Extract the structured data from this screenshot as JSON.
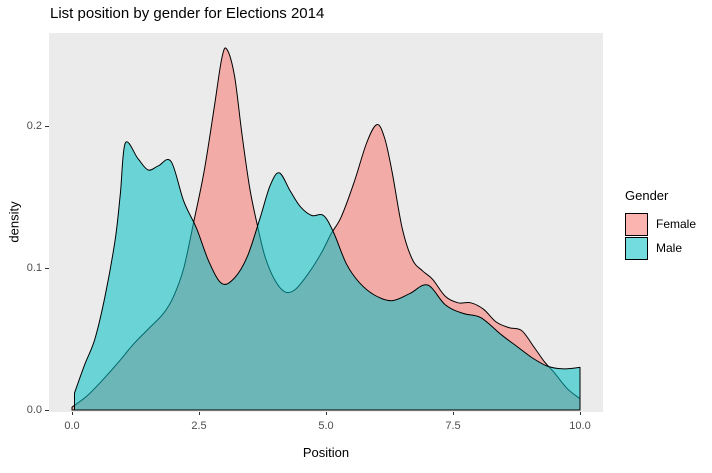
{
  "chart_data": {
    "type": "area",
    "title": "List position by gender for Elections 2014",
    "xlabel": "Position",
    "ylabel": "density",
    "xlim": [
      0,
      10
    ],
    "ylim": [
      0,
      0.265
    ],
    "grid": false,
    "panel_background": "#EBEBEB",
    "fill_opacity": 0.55,
    "outline_color": "#000000",
    "x_ticks": {
      "values": [
        0,
        2.5,
        5,
        7.5,
        10
      ],
      "labels": [
        "0.0",
        "2.5",
        "5.0",
        "7.5",
        "10.0"
      ]
    },
    "y_ticks": {
      "values": [
        0,
        0.1,
        0.2
      ],
      "labels": [
        "0.0",
        "0.1",
        "0.2"
      ]
    },
    "legend": {
      "title": "Gender",
      "position": "right",
      "entries": [
        {
          "label": "Female",
          "color": "#F8766D"
        },
        {
          "label": "Male",
          "color": "#00BFC4"
        }
      ]
    },
    "series": [
      {
        "name": "Female",
        "color": "#F8766D",
        "points": [
          [
            0.0,
            0.002
          ],
          [
            0.3,
            0.01
          ],
          [
            0.6,
            0.021
          ],
          [
            0.9,
            0.033
          ],
          [
            1.2,
            0.046
          ],
          [
            1.5,
            0.057
          ],
          [
            1.8,
            0.068
          ],
          [
            2.0,
            0.08
          ],
          [
            2.2,
            0.1
          ],
          [
            2.4,
            0.133
          ],
          [
            2.6,
            0.168
          ],
          [
            2.8,
            0.213
          ],
          [
            2.95,
            0.248
          ],
          [
            3.05,
            0.254
          ],
          [
            3.2,
            0.235
          ],
          [
            3.35,
            0.193
          ],
          [
            3.5,
            0.156
          ],
          [
            3.65,
            0.13
          ],
          [
            3.8,
            0.108
          ],
          [
            4.0,
            0.091
          ],
          [
            4.2,
            0.083
          ],
          [
            4.4,
            0.085
          ],
          [
            4.65,
            0.096
          ],
          [
            4.9,
            0.11
          ],
          [
            5.1,
            0.124
          ],
          [
            5.3,
            0.136
          ],
          [
            5.55,
            0.16
          ],
          [
            5.8,
            0.188
          ],
          [
            6.0,
            0.201
          ],
          [
            6.15,
            0.192
          ],
          [
            6.3,
            0.168
          ],
          [
            6.5,
            0.128
          ],
          [
            6.7,
            0.106
          ],
          [
            6.9,
            0.098
          ],
          [
            7.1,
            0.092
          ],
          [
            7.35,
            0.08
          ],
          [
            7.6,
            0.0755
          ],
          [
            7.85,
            0.0755
          ],
          [
            8.1,
            0.071
          ],
          [
            8.35,
            0.062
          ],
          [
            8.6,
            0.058
          ],
          [
            8.85,
            0.056
          ],
          [
            9.1,
            0.044
          ],
          [
            9.3,
            0.034
          ],
          [
            9.5,
            0.026
          ],
          [
            9.75,
            0.015
          ],
          [
            10.0,
            0.008
          ]
        ]
      },
      {
        "name": "Male",
        "color": "#00BFC4",
        "points": [
          [
            0.05,
            0.012
          ],
          [
            0.25,
            0.032
          ],
          [
            0.45,
            0.05
          ],
          [
            0.65,
            0.08
          ],
          [
            0.85,
            0.12
          ],
          [
            0.95,
            0.152
          ],
          [
            1.05,
            0.188
          ],
          [
            1.3,
            0.177
          ],
          [
            1.5,
            0.169
          ],
          [
            1.7,
            0.172
          ],
          [
            1.95,
            0.175
          ],
          [
            2.2,
            0.147
          ],
          [
            2.45,
            0.128
          ],
          [
            2.7,
            0.104
          ],
          [
            2.95,
            0.089
          ],
          [
            3.2,
            0.093
          ],
          [
            3.45,
            0.108
          ],
          [
            3.7,
            0.135
          ],
          [
            3.9,
            0.158
          ],
          [
            4.08,
            0.167
          ],
          [
            4.3,
            0.154
          ],
          [
            4.5,
            0.143
          ],
          [
            4.72,
            0.137
          ],
          [
            4.95,
            0.137
          ],
          [
            5.15,
            0.125
          ],
          [
            5.4,
            0.103
          ],
          [
            5.65,
            0.09
          ],
          [
            5.95,
            0.081
          ],
          [
            6.3,
            0.077
          ],
          [
            6.65,
            0.082
          ],
          [
            7.0,
            0.088
          ],
          [
            7.35,
            0.074
          ],
          [
            7.7,
            0.068
          ],
          [
            8.05,
            0.065
          ],
          [
            8.45,
            0.053
          ],
          [
            8.75,
            0.045
          ],
          [
            9.05,
            0.037
          ],
          [
            9.35,
            0.031
          ],
          [
            9.65,
            0.029
          ],
          [
            10.0,
            0.03
          ]
        ]
      }
    ]
  },
  "text_colors": {
    "tick_label": "#4D4D4D",
    "title": "#000000"
  }
}
